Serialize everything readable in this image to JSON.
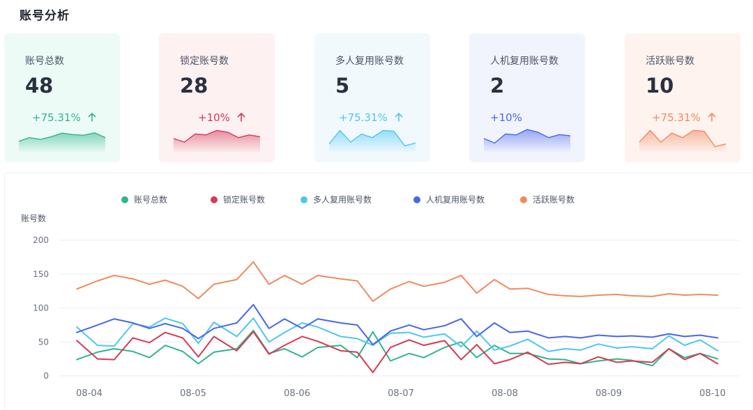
{
  "page": {
    "title": "账号分析"
  },
  "cards": [
    {
      "label": "账号总数",
      "value": "48",
      "change": "+75.31%",
      "direction": "up",
      "color": "#2fb58f",
      "bg": "#ecfbf6",
      "spark": [
        0.35,
        0.55,
        0.45,
        0.6,
        0.8,
        0.72,
        0.68,
        0.82,
        0.55
      ]
    },
    {
      "label": "锁定账号数",
      "value": "28",
      "change": "+10%",
      "direction": "up",
      "color": "#d63a55",
      "bg": "#fdf1f2",
      "spark": [
        0.5,
        0.3,
        0.75,
        0.7,
        0.95,
        0.85,
        0.55,
        0.7,
        0.6
      ]
    },
    {
      "label": "多人复用账号数",
      "value": "5",
      "change": "+75.31%",
      "direction": "up",
      "color": "#4ec6f2",
      "bg": "#f1f9fd",
      "spark": [
        0.2,
        0.95,
        0.3,
        0.75,
        0.55,
        0.95,
        0.9,
        0.1,
        0.25
      ]
    },
    {
      "label": "人机复用账号数",
      "value": "2",
      "change": "+10%",
      "direction": "none",
      "color": "#4866ec",
      "bg": "#f2f4fd",
      "spark": [
        0.5,
        0.25,
        0.75,
        0.7,
        1.0,
        0.85,
        0.55,
        0.72,
        0.65
      ]
    },
    {
      "label": "活跃账号数",
      "value": "10",
      "change": "+75.31%",
      "direction": "up",
      "color": "#f08a5d",
      "bg": "#fef3ef",
      "spark": [
        0.3,
        0.95,
        0.3,
        0.8,
        0.55,
        0.95,
        0.9,
        0.05,
        0.2
      ]
    }
  ],
  "chart_data": {
    "type": "line",
    "ylabel": "账号数",
    "ylim": [
      0,
      200
    ],
    "yticks": [
      0,
      50,
      100,
      150,
      200
    ],
    "xlabels": [
      "08-04",
      "08-05",
      "08-06",
      "08-07",
      "08-08",
      "08-09",
      "08-10"
    ],
    "x_range": [
      -0.12,
      6.12
    ],
    "x": [
      -0.12,
      0.08,
      0.24,
      0.42,
      0.58,
      0.73,
      0.9,
      1.05,
      1.2,
      1.42,
      1.58,
      1.73,
      1.88,
      2.05,
      2.2,
      2.42,
      2.58,
      2.73,
      2.9,
      3.08,
      3.22,
      3.42,
      3.58,
      3.73,
      3.9,
      4.05,
      4.22,
      4.42,
      4.58,
      4.73,
      4.9,
      5.08,
      5.22,
      5.42,
      5.58,
      5.73,
      5.88,
      6.05
    ],
    "series": [
      {
        "name": "账号总数",
        "color": "#2fb58f",
        "values": [
          24,
          35,
          40,
          36,
          27,
          45,
          36,
          18,
          35,
          40,
          67,
          33,
          40,
          28,
          42,
          45,
          27,
          65,
          22,
          33,
          27,
          42,
          50,
          27,
          45,
          33,
          33,
          25,
          24,
          18,
          22,
          25,
          23,
          15,
          40,
          27,
          33,
          25
        ]
      },
      {
        "name": "锁定账号数",
        "color": "#d63a55",
        "values": [
          52,
          25,
          24,
          56,
          49,
          64,
          56,
          28,
          58,
          37,
          65,
          32,
          45,
          58,
          51,
          37,
          35,
          5,
          42,
          53,
          45,
          52,
          24,
          46,
          18,
          24,
          35,
          17,
          20,
          18,
          28,
          20,
          22,
          20,
          40,
          24,
          33,
          18
        ]
      },
      {
        "name": "多人复用账号数",
        "color": "#4ec6f2",
        "values": [
          72,
          45,
          44,
          77,
          72,
          85,
          77,
          48,
          79,
          58,
          85,
          50,
          64,
          78,
          72,
          58,
          55,
          45,
          63,
          64,
          57,
          62,
          43,
          66,
          38,
          44,
          54,
          36,
          40,
          38,
          47,
          41,
          43,
          40,
          59,
          45,
          53,
          37
        ]
      },
      {
        "name": "人机复用账号数",
        "color": "#4866ec",
        "values": [
          64,
          75,
          84,
          78,
          70,
          77,
          70,
          55,
          70,
          78,
          105,
          70,
          84,
          70,
          84,
          78,
          75,
          46,
          66,
          75,
          68,
          74,
          84,
          58,
          78,
          64,
          66,
          56,
          58,
          56,
          60,
          58,
          59,
          57,
          62,
          58,
          60,
          56
        ]
      },
      {
        "name": "活跃账号数",
        "color": "#f08a5d",
        "values": [
          128,
          140,
          148,
          143,
          135,
          141,
          132,
          114,
          135,
          142,
          168,
          135,
          148,
          135,
          148,
          143,
          140,
          110,
          128,
          139,
          132,
          138,
          148,
          122,
          142,
          128,
          129,
          120,
          118,
          117,
          119,
          120,
          118,
          117,
          121,
          119,
          120,
          119
        ]
      }
    ]
  }
}
